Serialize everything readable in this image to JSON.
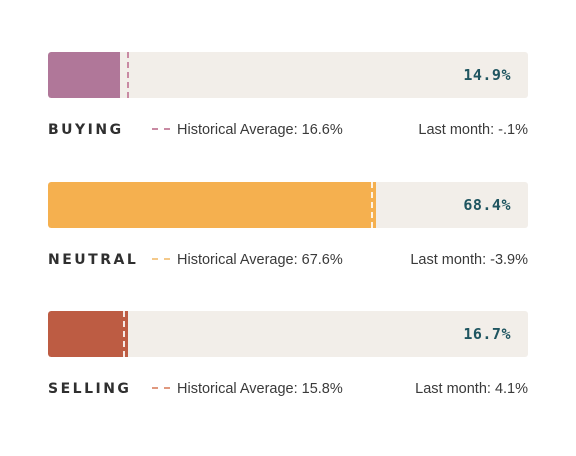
{
  "chart_data": {
    "type": "bar",
    "orientation": "horizontal",
    "categories": [
      "BUYING",
      "NEUTRAL",
      "SELLING"
    ],
    "values": [
      14.9,
      68.4,
      16.7
    ],
    "value_labels": [
      "14.9%",
      "68.4%",
      "16.7%"
    ],
    "historical_average": [
      16.6,
      67.6,
      15.8
    ],
    "xlim": [
      0,
      100
    ],
    "legend_label": "Historical Average",
    "rows": [
      {
        "label": "BUYING",
        "value_label": "14.9%",
        "avg_text": "Historical Average: 16.6%",
        "last_month": "Last month: -.1%",
        "color": "#b07799",
        "avg_color": "#c98aa3"
      },
      {
        "label": "NEUTRAL",
        "value_label": "68.4%",
        "avg_text": "Historical Average: 67.6%",
        "last_month": "Last month: -3.9%",
        "color": "#f5b04f",
        "avg_color": "#f4c98a"
      },
      {
        "label": "SELLING",
        "value_label": "16.7%",
        "avg_text": "Historical Average: 15.8%",
        "last_month": "Last month: 4.1%",
        "color": "#bd5c43",
        "avg_color": "#e0997f"
      }
    ]
  }
}
